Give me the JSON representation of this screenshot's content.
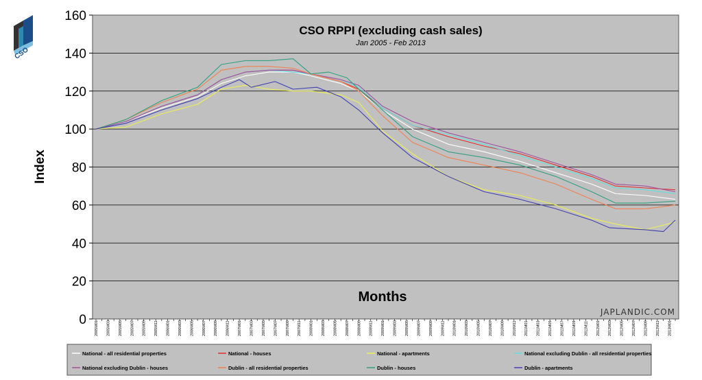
{
  "logo": {
    "text": "CSO"
  },
  "watermark": "JAPLANDIC.COM",
  "chart_data": {
    "type": "line",
    "title": "CSO RPPI (excluding cash sales)",
    "subtitle": "Jan 2005 - Feb 2013",
    "xlabel": "Months",
    "ylabel": "Index",
    "ylim": [
      0,
      160
    ],
    "yticks": [
      "0",
      "20",
      "40",
      "60",
      "80",
      "100",
      "120",
      "140",
      "160"
    ],
    "grid": true,
    "legend_position": "bottom",
    "x_range": [
      "2005M01",
      "2013M02"
    ],
    "x_ticks": [
      "2005M01",
      "2005M03",
      "2005M05",
      "2005M07",
      "2005M09",
      "2005M11",
      "2006M01",
      "2006M03",
      "2006M05",
      "2006M07",
      "2006M09",
      "2006M11",
      "2007M01",
      "2007M03",
      "2007M05",
      "2007M07",
      "2007M09",
      "2007M11",
      "2008M01",
      "2008M03",
      "2008M05",
      "2008M07",
      "2008M09",
      "2008M11",
      "2009M01",
      "2009M03",
      "2009M05",
      "2009M07",
      "2009M09",
      "2009M11",
      "2010M01",
      "2010M03",
      "2010M05",
      "2010M07",
      "2010M09",
      "2010M11",
      "2011M01",
      "2011M03",
      "2011M05",
      "2011M07",
      "2011M09",
      "2011M11",
      "2012M01",
      "2012M03",
      "2012M05",
      "2012M07",
      "2012M09",
      "2012M11",
      "2013M01"
    ],
    "series": [
      {
        "name": "National - all residential properties",
        "color": "#ffffff",
        "points": [
          [
            "2005M01",
            100
          ],
          [
            "2005M06",
            104
          ],
          [
            "2005M12",
            111
          ],
          [
            "2006M06",
            117
          ],
          [
            "2006M10",
            124
          ],
          [
            "2007M02",
            128
          ],
          [
            "2007M06",
            130
          ],
          [
            "2007M10",
            130
          ],
          [
            "2008M01",
            128
          ],
          [
            "2008M06",
            124
          ],
          [
            "2008M09",
            120
          ],
          [
            "2009M01",
            110
          ],
          [
            "2009M06",
            100
          ],
          [
            "2009M12",
            92
          ],
          [
            "2010M06",
            88
          ],
          [
            "2010M12",
            83
          ],
          [
            "2011M06",
            77
          ],
          [
            "2011M12",
            71
          ],
          [
            "2012M04",
            66
          ],
          [
            "2012M09",
            65
          ],
          [
            "2013M02",
            63
          ]
        ]
      },
      {
        "name": "National - houses",
        "color": "#e03030",
        "points": [
          [
            "2005M01",
            100
          ],
          [
            "2005M06",
            104
          ],
          [
            "2005M12",
            112
          ],
          [
            "2006M06",
            118
          ],
          [
            "2006M10",
            126
          ],
          [
            "2007M02",
            130
          ],
          [
            "2007M06",
            131
          ],
          [
            "2007M10",
            131
          ],
          [
            "2008M01",
            129
          ],
          [
            "2008M06",
            125
          ],
          [
            "2008M09",
            121
          ],
          [
            "2009M01",
            111
          ],
          [
            "2009M06",
            102
          ],
          [
            "2009M12",
            96
          ],
          [
            "2010M06",
            91
          ],
          [
            "2010M12",
            87
          ],
          [
            "2011M06",
            81
          ],
          [
            "2011M12",
            75
          ],
          [
            "2012M04",
            70
          ],
          [
            "2012M09",
            69
          ],
          [
            "2013M02",
            68
          ]
        ]
      },
      {
        "name": "National - apartments",
        "color": "#eeee55",
        "points": [
          [
            "2005M01",
            100
          ],
          [
            "2005M06",
            101
          ],
          [
            "2005M12",
            108
          ],
          [
            "2006M06",
            113
          ],
          [
            "2006M10",
            121
          ],
          [
            "2007M02",
            123
          ],
          [
            "2007M06",
            121
          ],
          [
            "2007M10",
            120
          ],
          [
            "2008M01",
            120
          ],
          [
            "2008M06",
            118
          ],
          [
            "2008M09",
            114
          ],
          [
            "2009M01",
            99
          ],
          [
            "2009M06",
            87
          ],
          [
            "2009M12",
            75
          ],
          [
            "2010M06",
            68
          ],
          [
            "2010M12",
            65
          ],
          [
            "2011M06",
            60
          ],
          [
            "2011M12",
            53
          ],
          [
            "2012M04",
            50
          ],
          [
            "2012M09",
            47
          ],
          [
            "2013M02",
            51
          ]
        ]
      },
      {
        "name": "National excluding Dublin - all residential properties",
        "color": "#66dddd",
        "points": [
          [
            "2005M01",
            100
          ],
          [
            "2005M06",
            104
          ],
          [
            "2005M12",
            112
          ],
          [
            "2006M06",
            118
          ],
          [
            "2006M10",
            126
          ],
          [
            "2007M02",
            130
          ],
          [
            "2007M06",
            131
          ],
          [
            "2007M10",
            130
          ],
          [
            "2008M01",
            129
          ],
          [
            "2008M06",
            126
          ],
          [
            "2008M09",
            122
          ],
          [
            "2009M01",
            111
          ],
          [
            "2009M06",
            102
          ],
          [
            "2009M12",
            97
          ],
          [
            "2010M06",
            92
          ],
          [
            "2010M12",
            86
          ],
          [
            "2011M06",
            80
          ],
          [
            "2011M12",
            74
          ],
          [
            "2012M04",
            69
          ],
          [
            "2012M09",
            68
          ],
          [
            "2013M02",
            66
          ]
        ]
      },
      {
        "name": "National excluding Dublin - houses",
        "color": "#a050a0",
        "points": [
          [
            "2005M01",
            100
          ],
          [
            "2005M06",
            104
          ],
          [
            "2005M12",
            112
          ],
          [
            "2006M06",
            118
          ],
          [
            "2006M10",
            126
          ],
          [
            "2007M02",
            130
          ],
          [
            "2007M06",
            131
          ],
          [
            "2007M10",
            131
          ],
          [
            "2008M01",
            129
          ],
          [
            "2008M06",
            126
          ],
          [
            "2008M09",
            123
          ],
          [
            "2009M01",
            112
          ],
          [
            "2009M06",
            104
          ],
          [
            "2009M12",
            98
          ],
          [
            "2010M06",
            93
          ],
          [
            "2010M12",
            88
          ],
          [
            "2011M06",
            82
          ],
          [
            "2011M12",
            76
          ],
          [
            "2012M04",
            71
          ],
          [
            "2012M09",
            70
          ],
          [
            "2013M02",
            67
          ]
        ]
      },
      {
        "name": "Dublin - all residential properties",
        "color": "#f08050",
        "points": [
          [
            "2005M01",
            100
          ],
          [
            "2005M06",
            105
          ],
          [
            "2005M12",
            114
          ],
          [
            "2006M06",
            121
          ],
          [
            "2006M10",
            131
          ],
          [
            "2007M02",
            133
          ],
          [
            "2007M06",
            133
          ],
          [
            "2007M10",
            132
          ],
          [
            "2008M01",
            129
          ],
          [
            "2008M06",
            125
          ],
          [
            "2008M09",
            120
          ],
          [
            "2009M01",
            107
          ],
          [
            "2009M06",
            93
          ],
          [
            "2009M12",
            85
          ],
          [
            "2010M06",
            81
          ],
          [
            "2010M12",
            77
          ],
          [
            "2011M06",
            71
          ],
          [
            "2011M12",
            63
          ],
          [
            "2012M04",
            58
          ],
          [
            "2012M09",
            58
          ],
          [
            "2013M02",
            60
          ]
        ]
      },
      {
        "name": "Dublin - houses",
        "color": "#30a080",
        "points": [
          [
            "2005M01",
            100
          ],
          [
            "2005M06",
            105
          ],
          [
            "2005M12",
            115
          ],
          [
            "2006M06",
            122
          ],
          [
            "2006M10",
            134
          ],
          [
            "2007M02",
            136
          ],
          [
            "2007M06",
            136
          ],
          [
            "2007M10",
            137
          ],
          [
            "2008M01",
            129
          ],
          [
            "2008M04",
            130
          ],
          [
            "2008M07",
            127
          ],
          [
            "2008M09",
            121
          ],
          [
            "2009M01",
            110
          ],
          [
            "2009M06",
            96
          ],
          [
            "2009M12",
            88
          ],
          [
            "2010M06",
            85
          ],
          [
            "2010M12",
            81
          ],
          [
            "2011M06",
            75
          ],
          [
            "2011M12",
            67
          ],
          [
            "2012M04",
            61
          ],
          [
            "2012M09",
            61
          ],
          [
            "2013M02",
            62
          ]
        ]
      },
      {
        "name": "Dublin - apartments",
        "color": "#4040b0",
        "points": [
          [
            "2005M01",
            100
          ],
          [
            "2005M06",
            103
          ],
          [
            "2005M12",
            110
          ],
          [
            "2006M06",
            116
          ],
          [
            "2006M10",
            122
          ],
          [
            "2007M01",
            126
          ],
          [
            "2007M03",
            122
          ],
          [
            "2007M07",
            125
          ],
          [
            "2007M10",
            121
          ],
          [
            "2008M02",
            122
          ],
          [
            "2008M06",
            117
          ],
          [
            "2008M09",
            110
          ],
          [
            "2009M01",
            98
          ],
          [
            "2009M06",
            85
          ],
          [
            "2009M12",
            75
          ],
          [
            "2010M06",
            67
          ],
          [
            "2010M12",
            63
          ],
          [
            "2011M06",
            58
          ],
          [
            "2011M12",
            52
          ],
          [
            "2012M03",
            48
          ],
          [
            "2012M09",
            47
          ],
          [
            "2012M12",
            46
          ],
          [
            "2013M02",
            52
          ]
        ]
      }
    ]
  }
}
